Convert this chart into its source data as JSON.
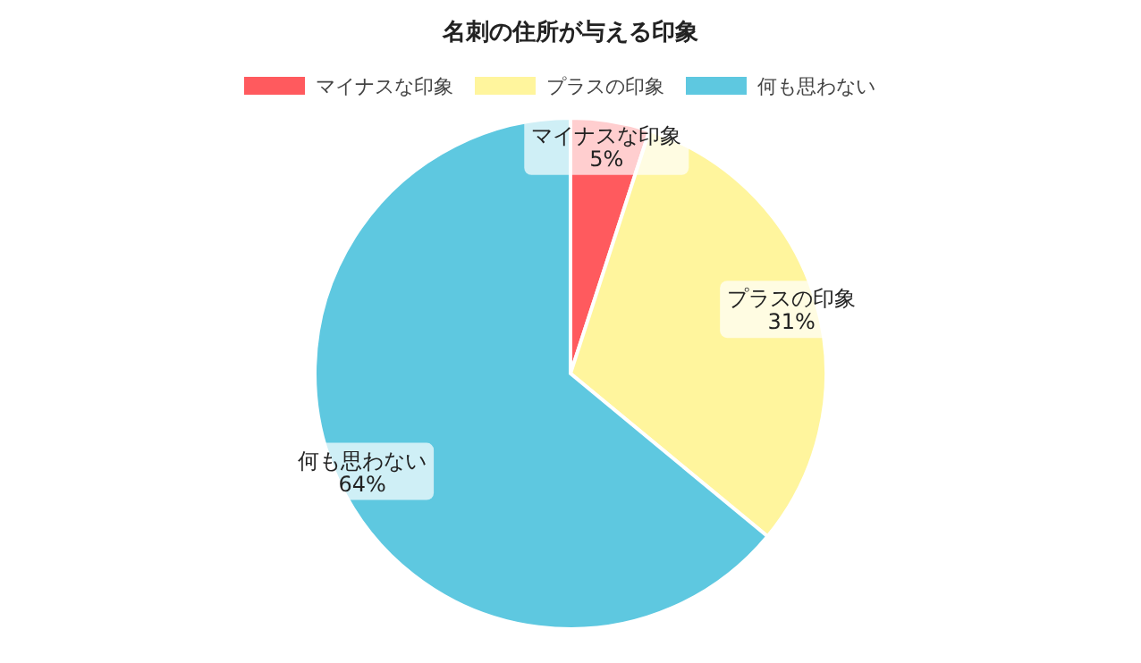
{
  "chart_data": {
    "type": "pie",
    "title": "名刺の住所が与える印象",
    "categories": [
      "マイナスな印象",
      "プラスの印象",
      "何も思わない"
    ],
    "values": [
      5,
      31,
      64
    ],
    "value_labels": [
      "5%",
      "31%",
      "64%"
    ],
    "colors": [
      "#ff5a5e",
      "#fff59d",
      "#5ec8e0"
    ],
    "legend": "top"
  }
}
